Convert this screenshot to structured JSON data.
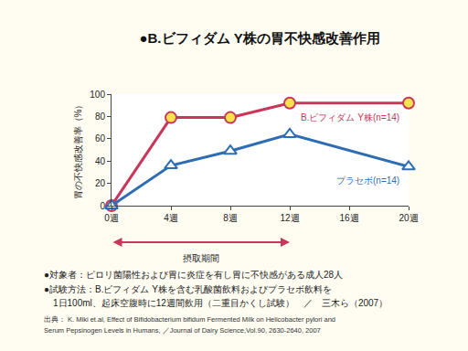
{
  "chart_data": {
    "type": "line",
    "title": "●B.ビフィダム Y株の胃不快感改善作用",
    "y_label": "胃の不快感改善率（%）",
    "x": [
      0,
      4,
      8,
      12,
      20
    ],
    "series": [
      {
        "name": "B.ビフィダム Y株(n=14)",
        "color": "#c8375a",
        "marker": "circle",
        "values": [
          0,
          79,
          79,
          92,
          92
        ]
      },
      {
        "name": "プラセボ(n=14)",
        "color": "#2e6db4",
        "marker": "triangle",
        "values": [
          0,
          36,
          49,
          64,
          35
        ]
      }
    ],
    "xlim": [
      0,
      20
    ],
    "xticks": [
      {
        "value": 0,
        "label": "0週"
      },
      {
        "value": 4,
        "label": "4週"
      },
      {
        "value": 8,
        "label": "8週"
      },
      {
        "value": 12,
        "label": "12週"
      },
      {
        "value": 16,
        "label": "16週"
      },
      {
        "value": 20,
        "label": "20週"
      }
    ],
    "ylim": [
      0,
      100
    ],
    "yticks": [
      0,
      20,
      40,
      60,
      80,
      100
    ],
    "grid": false,
    "intake_period": {
      "label": "摂取期間",
      "start": 0,
      "end": 12
    },
    "notes": [
      "●対象者：ピロリ菌陽性および胃に炎症を有し胃に不快感がある成人28人",
      "●試験方法：B.ビフィダム Y株を含む乳酸菌飲料およびプラセボ飲料を",
      "　1日100ml、起床空腹時に12週間飲用（二重目かくし試験）　／　三木ら（2007）"
    ],
    "source": [
      "出典： K. Miki et.al, Effect of Bifidobacterium bifidum Fermented Milk on Helicobacter pylori and",
      "Serum Pepsinogen Levels in Humans, ／Journal of Dairy Science,Vol.90, 2630-2640, 2007"
    ]
  }
}
